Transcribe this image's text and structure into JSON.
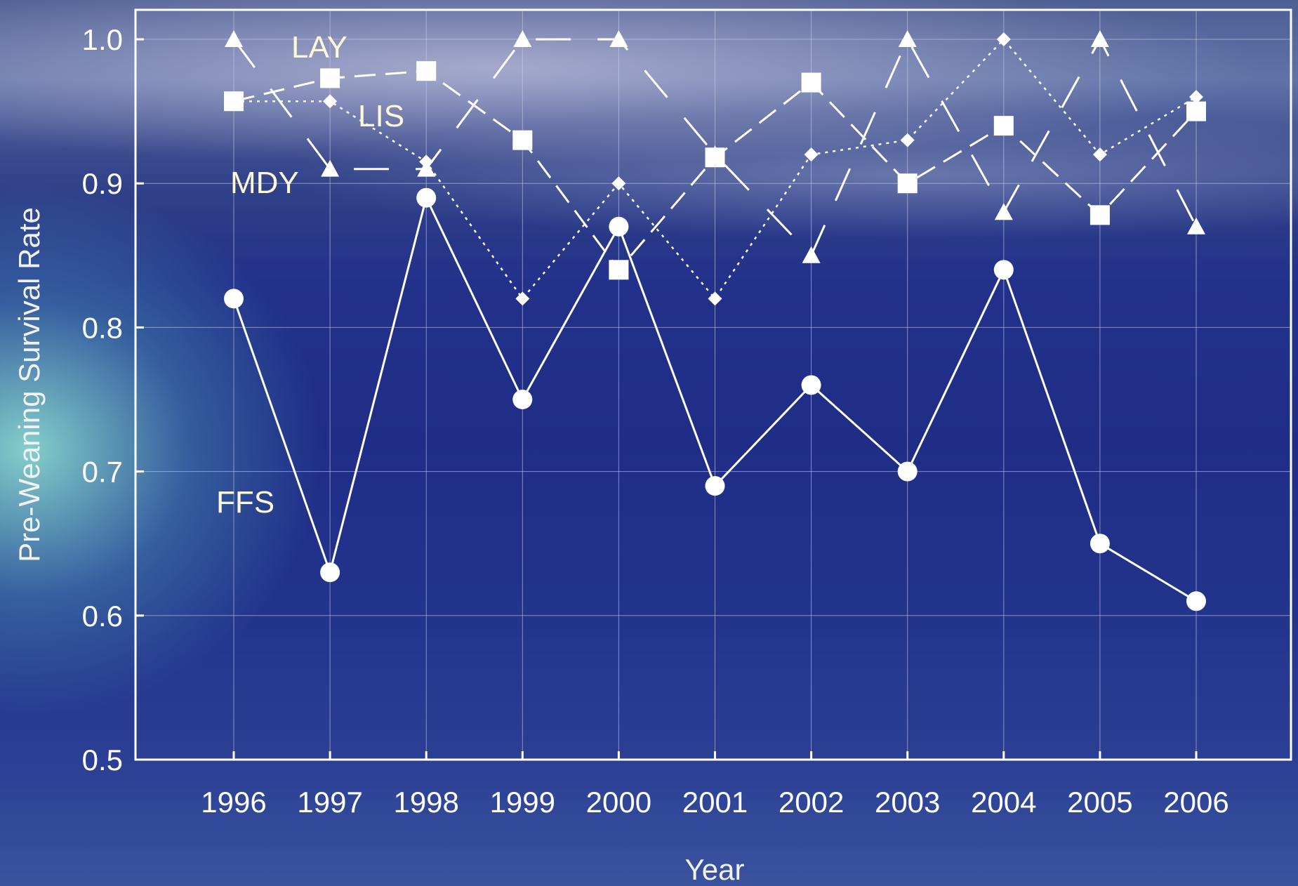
{
  "chart_data": {
    "type": "line",
    "title": "",
    "xlabel": "Year",
    "ylabel": "Pre-Weaning Survival Rate",
    "x": [
      "1996",
      "1997",
      "1998",
      "1999",
      "2000",
      "2001",
      "2002",
      "2003",
      "2004",
      "2005",
      "2006"
    ],
    "ylim": [
      0.5,
      1.0
    ],
    "y_ticks": [
      "0.5",
      "0.6",
      "0.7",
      "0.8",
      "0.9",
      "1.0"
    ],
    "grid": true,
    "legend": "none",
    "series": [
      {
        "name": "LAY",
        "marker": "triangle",
        "line": "long-dash",
        "values": [
          1.0,
          0.91,
          0.91,
          1.0,
          1.0,
          0.92,
          0.85,
          1.0,
          0.88,
          1.0,
          0.87
        ]
      },
      {
        "name": "LIS",
        "marker": "diamond",
        "line": "dotted",
        "values": [
          0.957,
          0.957,
          0.915,
          0.82,
          0.9,
          0.82,
          0.92,
          0.93,
          1.0,
          0.92,
          0.96
        ]
      },
      {
        "name": "MDY",
        "marker": "square",
        "line": "dashed",
        "values": [
          0.957,
          0.973,
          0.978,
          0.93,
          0.84,
          0.918,
          0.97,
          0.9,
          0.94,
          0.878,
          0.95
        ]
      },
      {
        "name": "FFS",
        "marker": "circle",
        "line": "solid",
        "values": [
          0.82,
          0.63,
          0.89,
          0.75,
          0.87,
          0.69,
          0.76,
          0.7,
          0.84,
          0.65,
          0.61
        ]
      }
    ],
    "colors": {
      "lines": "#ffffff",
      "grid": "#c8cde6",
      "labels": "#fdf8d8"
    }
  }
}
